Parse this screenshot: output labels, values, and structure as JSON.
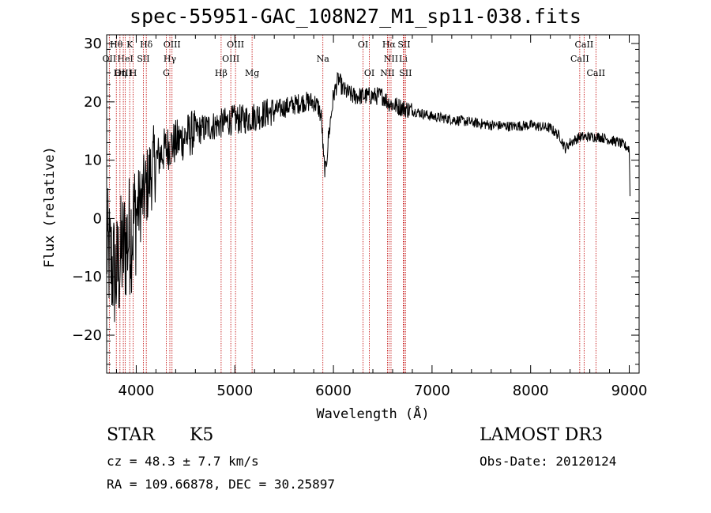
{
  "chart_data": {
    "type": "line",
    "title": "spec-55951-GAC_108N27_M1_sp11-038.fits",
    "xlabel": "Wavelength (Å)",
    "ylabel": "Flux (relative)",
    "xlim": [
      3700,
      9100
    ],
    "ylim": [
      -26.5,
      31.5
    ],
    "xticks": [
      4000,
      5000,
      6000,
      7000,
      8000,
      9000
    ],
    "yticks": [
      -20,
      -10,
      0,
      10,
      20,
      30
    ],
    "series": [
      {
        "name": "flux",
        "anchors_x": [
          3700,
          3750,
          3800,
          3850,
          3900,
          3950,
          4000,
          4050,
          4100,
          4150,
          4200,
          4250,
          4300,
          4350,
          4400,
          4500,
          4600,
          4700,
          4800,
          4900,
          5000,
          5100,
          5200,
          5300,
          5400,
          5500,
          5600,
          5700,
          5800,
          5850,
          5880,
          5900,
          5920,
          5950,
          6000,
          6050,
          6100,
          6200,
          6300,
          6400,
          6500,
          6550,
          6600,
          6700,
          6800,
          7000,
          7200,
          7400,
          7600,
          7800,
          8000,
          8200,
          8300,
          8350,
          8400,
          8450,
          8500,
          8600,
          8700,
          8800,
          8900,
          9000,
          9010
        ],
        "anchors_y": [
          -5,
          -8,
          -10,
          -6,
          -4,
          -2,
          1,
          3,
          5,
          8,
          10,
          11,
          12,
          12.5,
          13,
          14,
          15,
          15.5,
          16,
          16.5,
          17,
          17,
          17.5,
          18,
          18.5,
          19,
          19.5,
          20,
          20,
          19,
          17,
          10,
          8,
          14,
          21,
          24,
          22,
          21,
          21,
          21,
          21,
          20,
          19.5,
          19,
          18.5,
          17.5,
          17,
          16.5,
          16,
          15.8,
          16,
          15.5,
          14,
          12,
          13,
          13.5,
          14,
          14,
          14,
          13.5,
          13,
          12,
          2
        ]
      }
    ],
    "lines": [
      {
        "label": "Hθ",
        "x": 3798,
        "row": 0
      },
      {
        "label": "K",
        "x": 3934,
        "row": 0
      },
      {
        "label": "Hδ",
        "x": 4102,
        "row": 0
      },
      {
        "label": "OIII",
        "x": 4363,
        "row": 0
      },
      {
        "label": "OIII",
        "x": 5007,
        "row": 0
      },
      {
        "label": "OI",
        "x": 6300,
        "row": 0
      },
      {
        "label": "Hα",
        "x": 6563,
        "row": 0
      },
      {
        "label": "SII",
        "x": 6716,
        "row": 0
      },
      {
        "label": "CaII",
        "x": 8542,
        "row": 0
      },
      {
        "label": "OII",
        "x": 3727,
        "row": 1
      },
      {
        "label": "HeI",
        "x": 3889,
        "row": 1
      },
      {
        "label": "SII",
        "x": 4072,
        "row": 1
      },
      {
        "label": "Hγ",
        "x": 4341,
        "row": 1
      },
      {
        "label": "OIII",
        "x": 4959,
        "row": 1
      },
      {
        "label": "Na",
        "x": 5893,
        "row": 1
      },
      {
        "label": "NII",
        "x": 6584,
        "row": 1
      },
      {
        "label": "Li",
        "x": 6708,
        "row": 1
      },
      {
        "label": "CaII",
        "x": 8498,
        "row": 1
      },
      {
        "label": "OIII",
        "x": 3869,
        "row": 2
      },
      {
        "label": "Hη",
        "x": 3835,
        "row": 2
      },
      {
        "label": "H",
        "x": 3969,
        "row": 2
      },
      {
        "label": "G",
        "x": 4305,
        "row": 2
      },
      {
        "label": "Hβ",
        "x": 4861,
        "row": 2
      },
      {
        "label": "Mg",
        "x": 5175,
        "row": 2
      },
      {
        "label": "OI",
        "x": 6364,
        "row": 2
      },
      {
        "label": "NII",
        "x": 6548,
        "row": 2
      },
      {
        "label": "SII",
        "x": 6731,
        "row": 2
      },
      {
        "label": "CaII",
        "x": 8662,
        "row": 2
      }
    ]
  },
  "info": {
    "class": "STAR",
    "subclass": "K5",
    "survey": "LAMOST DR3",
    "cz": "cz = 48.3 ± 7.7 km/s",
    "obs_date": "Obs-Date: 20120124",
    "radec": "RA = 109.66878, DEC =  30.25897"
  }
}
